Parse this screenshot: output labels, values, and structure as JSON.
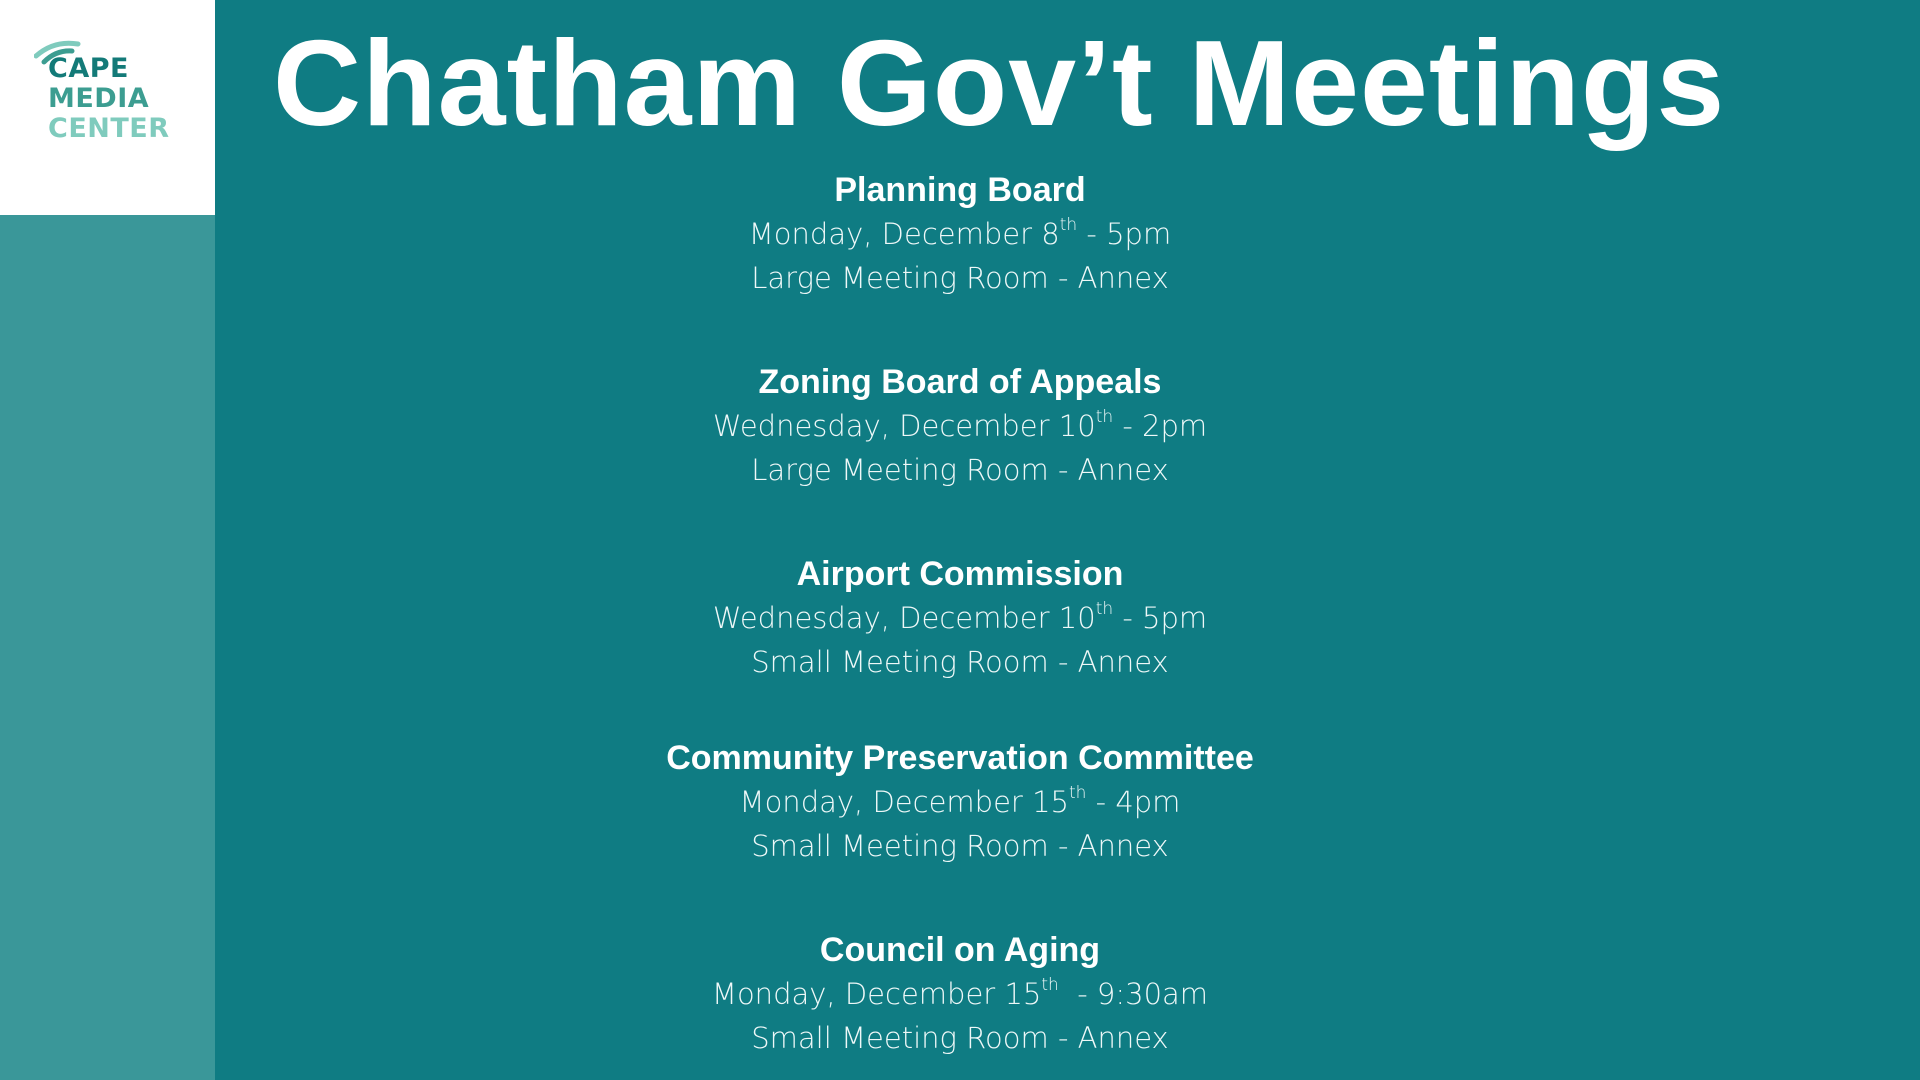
{
  "logo": {
    "line1": "CAPE",
    "line2": "MEDIA",
    "line3": "CENTER"
  },
  "title": "Chatham Gov’t Meetings",
  "meetings": [
    {
      "name": "Planning Board",
      "date_pre": "Monday, December 8",
      "suffix": "th",
      "date_post": " - 5pm",
      "location": "Large Meeting Room - Annex"
    },
    {
      "name": "Zoning Board of Appeals",
      "date_pre": "Wednesday, December 10",
      "suffix": "th",
      "date_post": " - 2pm",
      "location": "Large Meeting Room - Annex"
    },
    {
      "name": "Airport Commission",
      "date_pre": "Wednesday, December 10",
      "suffix": "th",
      "date_post": " - 5pm",
      "location": "Small Meeting Room - Annex"
    },
    {
      "name": "Community Preservation Committee",
      "date_pre": "Monday, December 15",
      "suffix": "th",
      "date_post": " - 4pm",
      "location": "Small Meeting Room - Annex"
    },
    {
      "name": "Council on Aging",
      "date_pre": "Monday, December 15",
      "suffix": "th",
      "date_post": "  - 9:30am",
      "location": "Small Meeting Room - Annex"
    }
  ],
  "colors": {
    "background": "#0f7c83",
    "sidebar": "#3a9799",
    "logo_dark": "#137a78",
    "logo_mid": "#3c9d91",
    "logo_light": "#7fcbbd"
  }
}
